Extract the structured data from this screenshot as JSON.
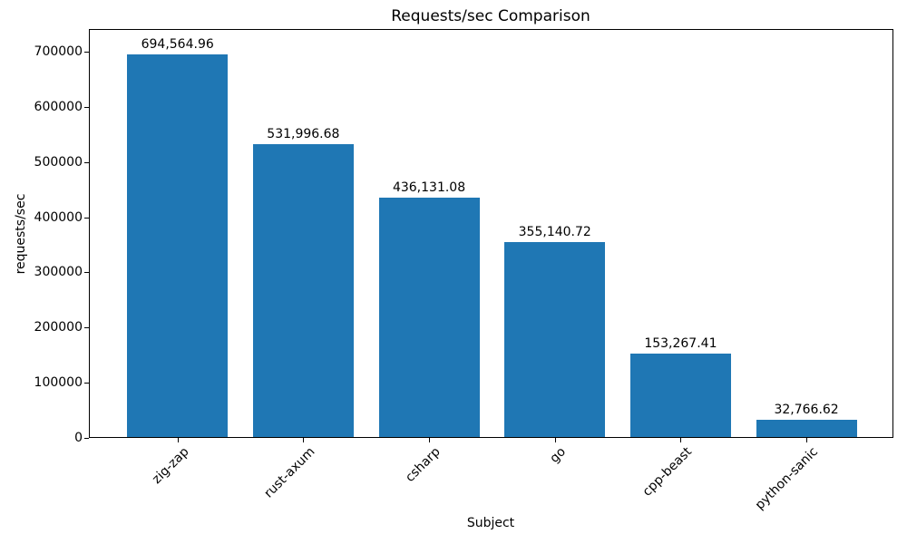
{
  "chart_data": {
    "type": "bar",
    "title": "Requests/sec Comparison",
    "xlabel": "Subject",
    "ylabel": "requests/sec",
    "categories": [
      "zig-zap",
      "rust-axum",
      "csharp",
      "go",
      "cpp-beast",
      "python-sanic"
    ],
    "values": [
      694564.96,
      531996.68,
      436131.08,
      355140.72,
      153267.41,
      32766.62
    ],
    "value_labels": [
      "694,564.96",
      "531,996.68",
      "436,131.08",
      "355,140.72",
      "153,267.41",
      "32,766.62"
    ],
    "yticks": [
      0,
      100000,
      200000,
      300000,
      400000,
      500000,
      600000,
      700000
    ],
    "ytick_labels": [
      "0",
      "100000",
      "200000",
      "300000",
      "400000",
      "500000",
      "600000",
      "700000"
    ],
    "ylim": [
      0,
      741000
    ],
    "bar_color": "#1f77b4",
    "grid": false,
    "legend": null,
    "x_tick_rotation_deg": 45
  }
}
